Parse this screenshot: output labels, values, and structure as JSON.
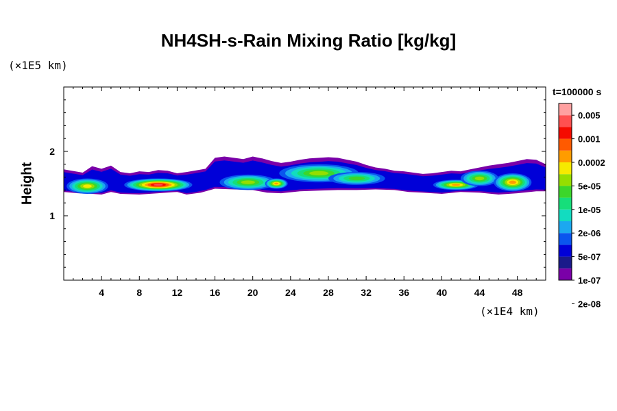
{
  "chart_data": {
    "type": "heatmap",
    "title": "NH4SH-s-Rain Mixing Ratio [kg/kg]",
    "xlabel": "",
    "ylabel": "Height",
    "x_unit": "(×1E4 km)",
    "y_unit": "(×1E5 km)",
    "time_label": "t=100000 s",
    "xlim": [
      0,
      51
    ],
    "ylim": [
      0,
      3
    ],
    "x_ticks": [
      4,
      8,
      12,
      16,
      20,
      24,
      28,
      32,
      36,
      40,
      44,
      48
    ],
    "y_ticks": [
      1,
      2
    ],
    "colorbar": {
      "labels": [
        "0.005",
        "0.001",
        "0.0002",
        "5e-05",
        "1e-05",
        "2e-06",
        "5e-07",
        "1e-07",
        "2e-08"
      ],
      "colors": [
        "#7a00a8",
        "#1a1a8a",
        "#0000d8",
        "#0a55ee",
        "#1ca8f0",
        "#12dcc0",
        "#16de7a",
        "#3cd62a",
        "#96de00",
        "#f6ea00",
        "#ff9c00",
        "#ff5a00",
        "#f50a00",
        "#ff5050",
        "#ffa0a0"
      ]
    },
    "band": {
      "bottom": [
        [
          0,
          1.37
        ],
        [
          1.5,
          1.35
        ],
        [
          3,
          1.34
        ],
        [
          4,
          1.33
        ],
        [
          5,
          1.37
        ],
        [
          6,
          1.34
        ],
        [
          8,
          1.33
        ],
        [
          10,
          1.35
        ],
        [
          12,
          1.37
        ],
        [
          13,
          1.33
        ],
        [
          14.5,
          1.36
        ],
        [
          16,
          1.42
        ],
        [
          18,
          1.41
        ],
        [
          20,
          1.4
        ],
        [
          21.5,
          1.36
        ],
        [
          23,
          1.35
        ],
        [
          25,
          1.38
        ],
        [
          27,
          1.39
        ],
        [
          29,
          1.4
        ],
        [
          31,
          1.4
        ],
        [
          33,
          1.41
        ],
        [
          35,
          1.4
        ],
        [
          36.5,
          1.37
        ],
        [
          38,
          1.36
        ],
        [
          40,
          1.34
        ],
        [
          42,
          1.37
        ],
        [
          44,
          1.36
        ],
        [
          46,
          1.33
        ],
        [
          48,
          1.35
        ],
        [
          50,
          1.38
        ],
        [
          51,
          1.38
        ]
      ],
      "top": [
        [
          0,
          1.72
        ],
        [
          2,
          1.67
        ],
        [
          3,
          1.77
        ],
        [
          4,
          1.73
        ],
        [
          5,
          1.78
        ],
        [
          6,
          1.68
        ],
        [
          7,
          1.66
        ],
        [
          8,
          1.69
        ],
        [
          9,
          1.68
        ],
        [
          10,
          1.71
        ],
        [
          11,
          1.7
        ],
        [
          12,
          1.66
        ],
        [
          13,
          1.68
        ],
        [
          15,
          1.73
        ],
        [
          16,
          1.9
        ],
        [
          17,
          1.92
        ],
        [
          18,
          1.9
        ],
        [
          19,
          1.88
        ],
        [
          20,
          1.92
        ],
        [
          21,
          1.89
        ],
        [
          22,
          1.85
        ],
        [
          23,
          1.82
        ],
        [
          24,
          1.84
        ],
        [
          25,
          1.87
        ],
        [
          26,
          1.89
        ],
        [
          27,
          1.9
        ],
        [
          28,
          1.91
        ],
        [
          29,
          1.9
        ],
        [
          30,
          1.87
        ],
        [
          31,
          1.84
        ],
        [
          32,
          1.79
        ],
        [
          33,
          1.75
        ],
        [
          34,
          1.73
        ],
        [
          35,
          1.7
        ],
        [
          36,
          1.69
        ],
        [
          37,
          1.67
        ],
        [
          38,
          1.65
        ],
        [
          39,
          1.66
        ],
        [
          40,
          1.68
        ],
        [
          41,
          1.7
        ],
        [
          42,
          1.69
        ],
        [
          43,
          1.72
        ],
        [
          44,
          1.75
        ],
        [
          45,
          1.78
        ],
        [
          46,
          1.8
        ],
        [
          47,
          1.82
        ],
        [
          48,
          1.85
        ],
        [
          49,
          1.88
        ],
        [
          50,
          1.87
        ],
        [
          51,
          1.8
        ]
      ]
    },
    "cells": [
      {
        "x": 2.5,
        "y": 1.46,
        "rx": 2.2,
        "ry": 0.12,
        "peak": 9
      },
      {
        "x": 10,
        "y": 1.48,
        "rx": 3.6,
        "ry": 0.1,
        "peak": 13
      },
      {
        "x": 19.5,
        "y": 1.52,
        "rx": 3,
        "ry": 0.12,
        "peak": 8
      },
      {
        "x": 22.5,
        "y": 1.5,
        "rx": 1.2,
        "ry": 0.08,
        "peak": 10
      },
      {
        "x": 27,
        "y": 1.66,
        "rx": 4.2,
        "ry": 0.14,
        "peak": 8
      },
      {
        "x": 31,
        "y": 1.58,
        "rx": 3,
        "ry": 0.1,
        "peak": 7
      },
      {
        "x": 41.5,
        "y": 1.48,
        "rx": 2.4,
        "ry": 0.08,
        "peak": 10
      },
      {
        "x": 44,
        "y": 1.58,
        "rx": 2,
        "ry": 0.12,
        "peak": 8
      },
      {
        "x": 47.5,
        "y": 1.52,
        "rx": 2,
        "ry": 0.14,
        "peak": 10
      }
    ],
    "grid": false
  }
}
